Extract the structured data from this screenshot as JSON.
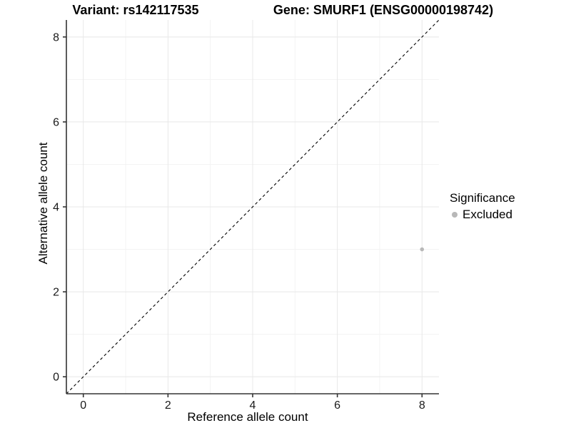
{
  "chart_data": {
    "type": "scatter",
    "title_left": "Variant: rs142117535",
    "title_right": "Gene: SMURF1 (ENSG00000198742)",
    "xlabel": "Reference allele count",
    "ylabel": "Alternative allele count",
    "xlim": [
      -0.4,
      8.4
    ],
    "ylim": [
      -0.4,
      8.4
    ],
    "x_ticks": [
      0,
      2,
      4,
      6,
      8
    ],
    "y_ticks": [
      0,
      2,
      4,
      6,
      8
    ],
    "x_minor_ticks": [
      1,
      3,
      5,
      7
    ],
    "y_minor_ticks": [
      1,
      3,
      5,
      7
    ],
    "grid": "on",
    "identity_line": {
      "style": "dashed",
      "color": "#000000",
      "from": -0.4,
      "to": 8.4
    },
    "series": [
      {
        "name": "Excluded",
        "color": "#b8b8b8",
        "points": [
          {
            "x": 8,
            "y": 3
          }
        ]
      }
    ],
    "legend": {
      "title": "Significance",
      "position": "right",
      "entries": [
        {
          "label": "Excluded",
          "color": "#b8b8b8",
          "marker": "circle-icon"
        }
      ]
    },
    "colors": {
      "background": "#ffffff",
      "grid_major": "#e8e8e8",
      "grid_minor": "#f3f3f3",
      "axis_line": "#333333",
      "tick_text": "#1a1a1a",
      "point": "#b8b8b8"
    }
  }
}
